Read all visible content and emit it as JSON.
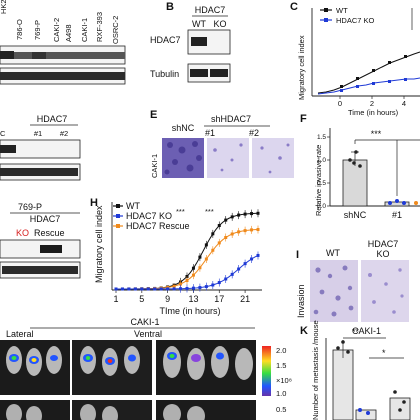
{
  "panel_a": {
    "cell_lines": [
      "786-O",
      "769-P",
      "CAKI-2",
      "A498",
      "CAKI-1",
      "RXF-393",
      "OSRC-2"
    ],
    "partial_label": "HK2"
  },
  "panel_b": {
    "letter": "B",
    "group_title": "HDAC7",
    "lanes": [
      "WT",
      "KO"
    ],
    "rows": [
      "HDAC7",
      "Tubulin"
    ]
  },
  "panel_c": {
    "letter": "C",
    "ylabel": "Migratory cell index",
    "xlabel": "Time (in hours)",
    "legend": [
      "WT",
      "HDAC7 KO"
    ],
    "xticks": [
      "0",
      "2",
      "4"
    ],
    "colors": {
      "wt": "#111111",
      "ko": "#1f3ad6"
    }
  },
  "panel_d": {
    "group_title": "HDAC7",
    "lanes": [
      "#1",
      "#2"
    ],
    "partial_lane": "C"
  },
  "panel_e": {
    "letter": "E",
    "side_label": "CAKI-1",
    "col_shnc": "shNC",
    "group_title": "shHDAC7",
    "cols": [
      "#1",
      "#2"
    ]
  },
  "panel_f": {
    "letter": "F",
    "ylabel": "Relative invasive rate",
    "yticks": [
      "0.0",
      "0.5",
      "1.0",
      "1.5"
    ],
    "categories": [
      "shNC",
      "#1"
    ],
    "significance": "***"
  },
  "panel_g": {
    "cell_line": "769-P",
    "group_title": "HDAC7",
    "lanes": [
      "KO",
      "Rescue"
    ],
    "ko_color": "#d62020"
  },
  "panel_h": {
    "letter": "H",
    "ylabel": "Migratory cell index",
    "xlabel": "TIme (in hours)",
    "xticks": [
      "1",
      "5",
      "9",
      "13",
      "17",
      "21"
    ],
    "legend": [
      "WT",
      "HDAC7 KO",
      "HDAC7 Rescue"
    ],
    "significance": [
      "***",
      "***"
    ],
    "colors": {
      "wt": "#111111",
      "ko": "#1f3ad6",
      "rescue": "#f08a1c"
    }
  },
  "panel_i": {
    "letter": "I",
    "side_label": "Invasion",
    "cols": [
      "WT",
      "HDAC7\nKO"
    ]
  },
  "panel_j": {
    "title": "CAKI-1",
    "views": [
      "Lateral",
      "Ventral"
    ],
    "scale_ticks": [
      "2.0",
      "1.5",
      "1.0",
      "0.5"
    ],
    "scale_unit": "×10⁸"
  },
  "panel_k": {
    "letter": "K",
    "title": "CAKI-1",
    "ylabel": "Number of metastasis /mouse",
    "significance": [
      "**",
      "*"
    ]
  }
}
